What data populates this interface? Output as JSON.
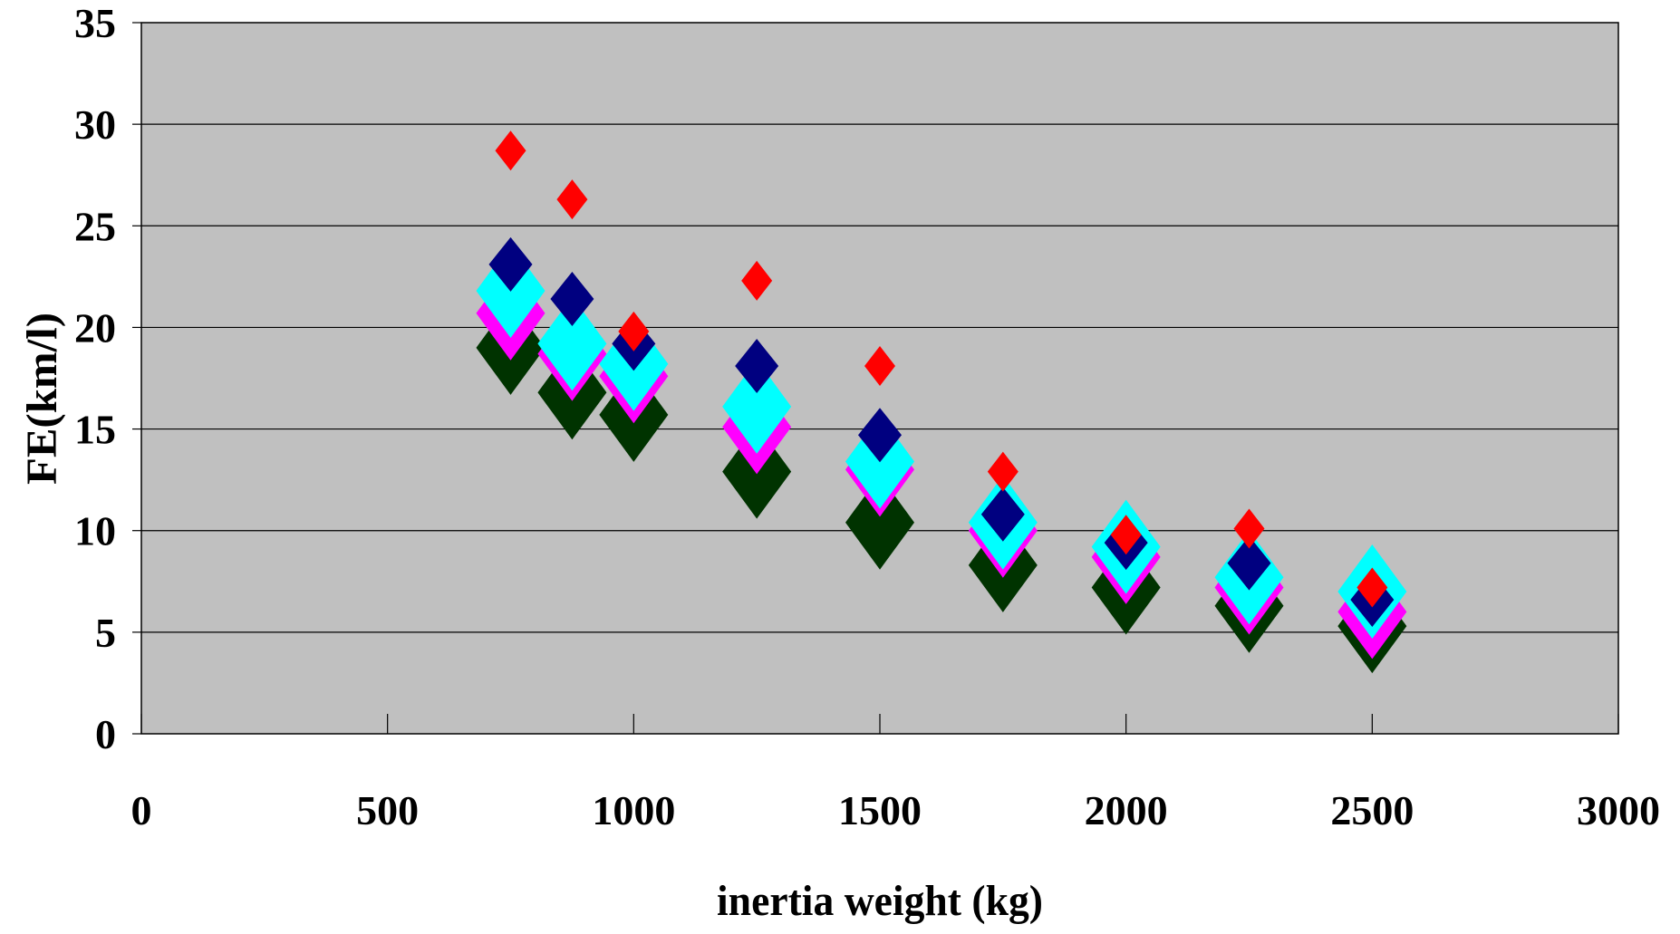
{
  "chart_data": {
    "type": "scatter",
    "title": "",
    "xlabel": "inertia weight (kg)",
    "ylabel": "FE(km/l)",
    "xlim": [
      0,
      3000
    ],
    "ylim": [
      0,
      35
    ],
    "x_ticks": [
      0,
      500,
      1000,
      1500,
      2000,
      2500,
      3000
    ],
    "y_ticks": [
      0,
      5,
      10,
      15,
      20,
      25,
      30,
      35
    ],
    "grid": "horizontal",
    "plot_background": "#c0c0c0",
    "marker": "diamond",
    "series": [
      {
        "color": "#003300",
        "size": "large",
        "points": [
          [
            750,
            19.0
          ],
          [
            875,
            16.8
          ],
          [
            1000,
            15.7
          ],
          [
            1250,
            12.9
          ],
          [
            1500,
            10.4
          ],
          [
            1750,
            8.3
          ],
          [
            2000,
            7.2
          ],
          [
            2250,
            6.3
          ],
          [
            2500,
            5.3
          ]
        ]
      },
      {
        "color": "#ff00ff",
        "size": "large",
        "points": [
          [
            750,
            20.7
          ],
          [
            875,
            18.7
          ],
          [
            1000,
            17.6
          ],
          [
            1250,
            15.1
          ],
          [
            1500,
            13.0
          ],
          [
            1750,
            10.0
          ],
          [
            2000,
            8.7
          ],
          [
            2250,
            7.2
          ],
          [
            2500,
            6.0
          ]
        ]
      },
      {
        "color": "#00ffff",
        "size": "large",
        "points": [
          [
            750,
            21.8
          ],
          [
            875,
            19.2
          ],
          [
            1000,
            18.2
          ],
          [
            1250,
            16.1
          ],
          [
            1500,
            13.4
          ],
          [
            1750,
            10.4
          ],
          [
            2000,
            9.2
          ],
          [
            2250,
            7.7
          ],
          [
            2500,
            7.0
          ]
        ]
      },
      {
        "color": "#000080",
        "size": "medium",
        "points": [
          [
            750,
            23.1
          ],
          [
            875,
            21.4
          ],
          [
            1000,
            19.2
          ],
          [
            1250,
            18.1
          ],
          [
            1500,
            14.7
          ],
          [
            1750,
            10.8
          ],
          [
            2000,
            9.4
          ],
          [
            2250,
            8.4
          ],
          [
            2500,
            6.6
          ]
        ]
      },
      {
        "color": "#ff0000",
        "size": "small",
        "points": [
          [
            750,
            28.7
          ],
          [
            875,
            26.3
          ],
          [
            1000,
            19.8
          ],
          [
            1250,
            22.3
          ],
          [
            1500,
            18.1
          ],
          [
            1750,
            12.9
          ],
          [
            2000,
            9.8
          ],
          [
            2250,
            10.1
          ],
          [
            2500,
            7.2
          ]
        ]
      }
    ]
  }
}
